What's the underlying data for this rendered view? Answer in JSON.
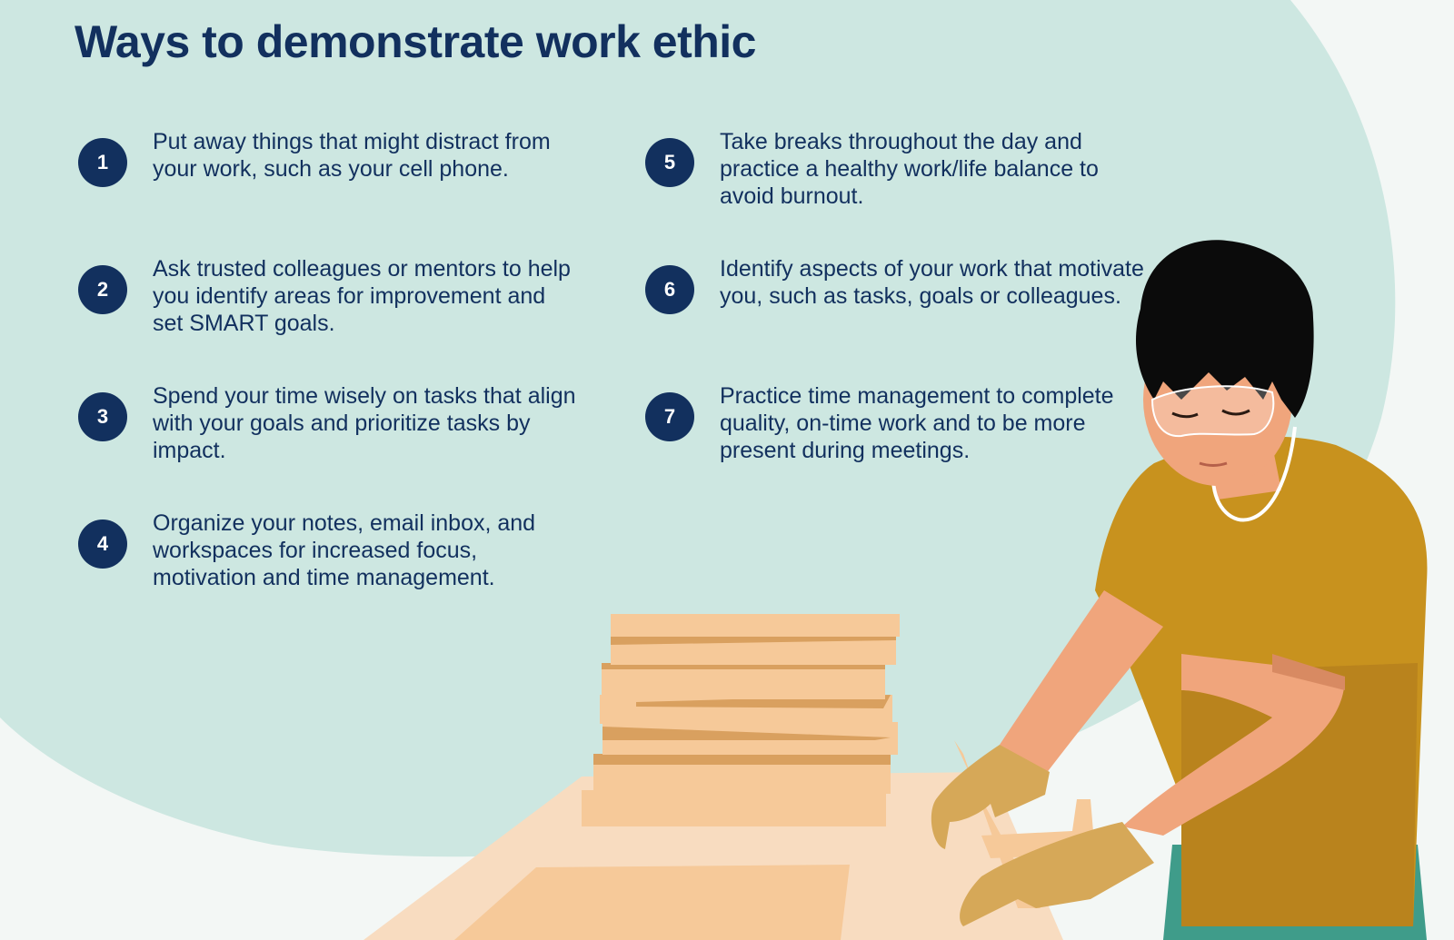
{
  "title": "Ways to demonstrate work ethic",
  "colors": {
    "background": "#f3f7f5",
    "blob": "#cde7e1",
    "accent_navy": "#12305e",
    "shirt": "#c8921e",
    "skin": "#f0a57c",
    "wood_light": "#f6c999",
    "wood_dark": "#d9a05f",
    "table": "#f8dcc0",
    "pants": "#3f9c8a"
  },
  "tips": [
    {
      "number": "1",
      "text": "Put away things that might distract from your work, such as your cell phone."
    },
    {
      "number": "2",
      "text": "Ask trusted colleagues or mentors to help you identify areas for improvement and set SMART goals."
    },
    {
      "number": "3",
      "text": "Spend your time wisely on tasks that align with your goals and prioritize tasks by impact."
    },
    {
      "number": "4",
      "text": "Organize your notes, email inbox, and workspaces for increased focus, motivation and time management."
    },
    {
      "number": "5",
      "text": "Take breaks throughout the day and practice a healthy work/life balance to avoid burnout."
    },
    {
      "number": "6",
      "text": "Identify aspects of your work that motivate you, such as tasks, goals or colleagues."
    },
    {
      "number": "7",
      "text": "Practice time management to complete quality, on-time work and to be more present during meetings."
    }
  ]
}
